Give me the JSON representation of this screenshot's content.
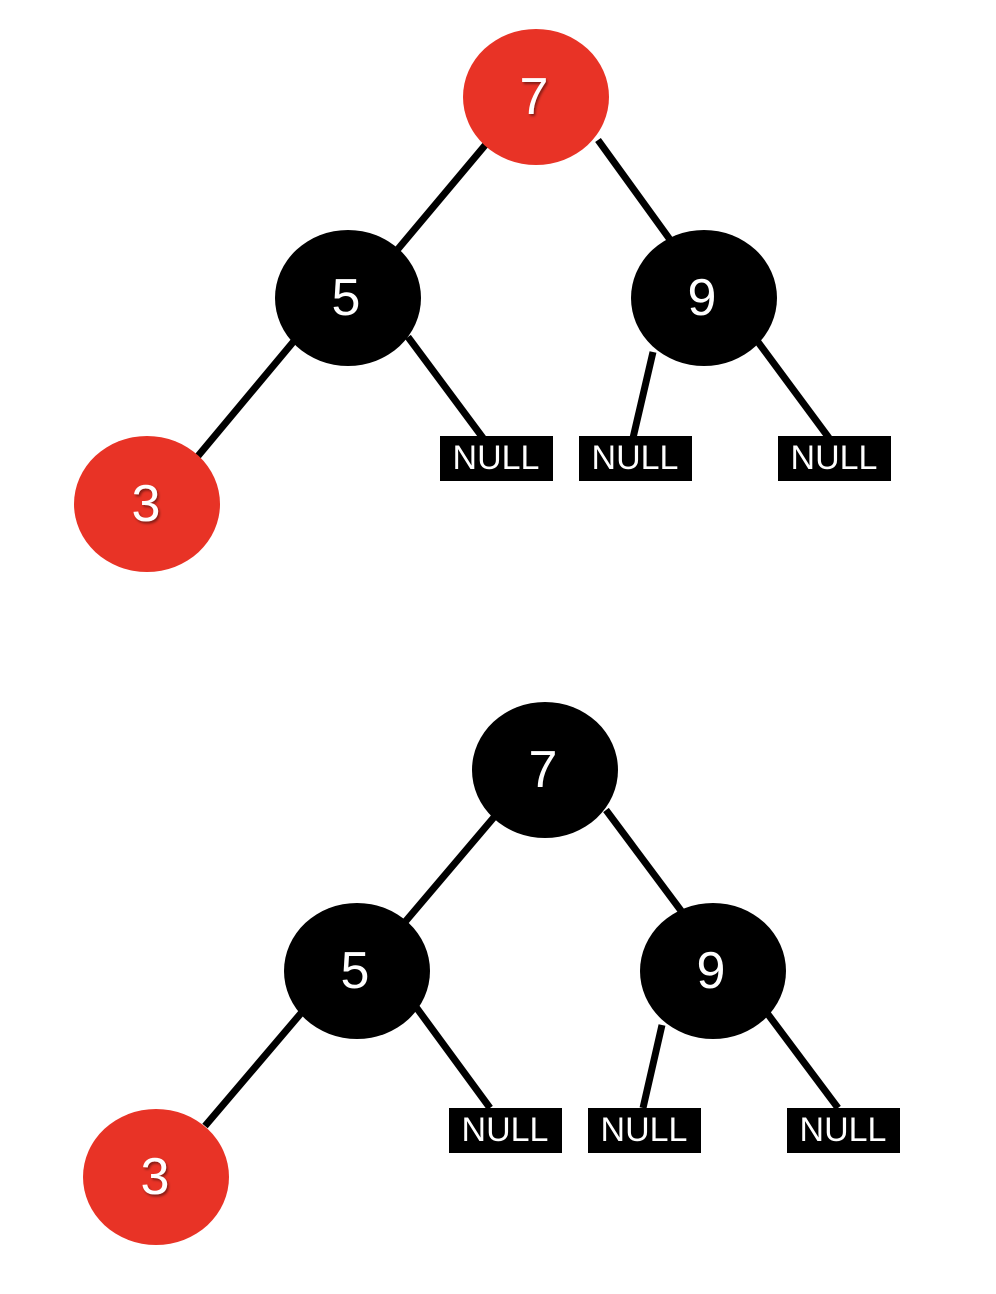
{
  "colors": {
    "red": "#e83326",
    "black": "#000000",
    "text": "#ffffff"
  },
  "trees": [
    {
      "nodes": {
        "root": {
          "label": "7",
          "color": "red"
        },
        "left": {
          "label": "5",
          "color": "black"
        },
        "right": {
          "label": "9",
          "color": "black"
        },
        "leftleft": {
          "label": "3",
          "color": "red"
        }
      },
      "nulls": [
        "NULL",
        "NULL",
        "NULL"
      ]
    },
    {
      "nodes": {
        "root": {
          "label": "7",
          "color": "black"
        },
        "left": {
          "label": "5",
          "color": "black"
        },
        "right": {
          "label": "9",
          "color": "black"
        },
        "leftleft": {
          "label": "3",
          "color": "red"
        }
      },
      "nulls": [
        "NULL",
        "NULL",
        "NULL"
      ]
    }
  ]
}
